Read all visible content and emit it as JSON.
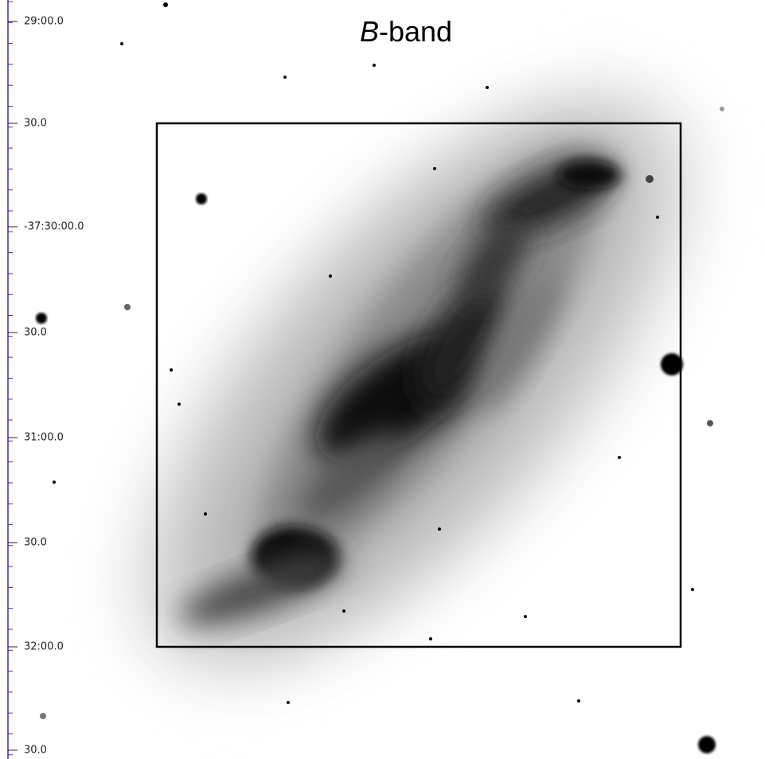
{
  "title": {
    "italic": "B",
    "text": "-band"
  },
  "axis_labels": [
    "29:00.0",
    "30.0",
    "-37:30:00.0",
    "30.0",
    "31:00.0",
    "30.0",
    "32:00.0",
    "30.0"
  ]
}
